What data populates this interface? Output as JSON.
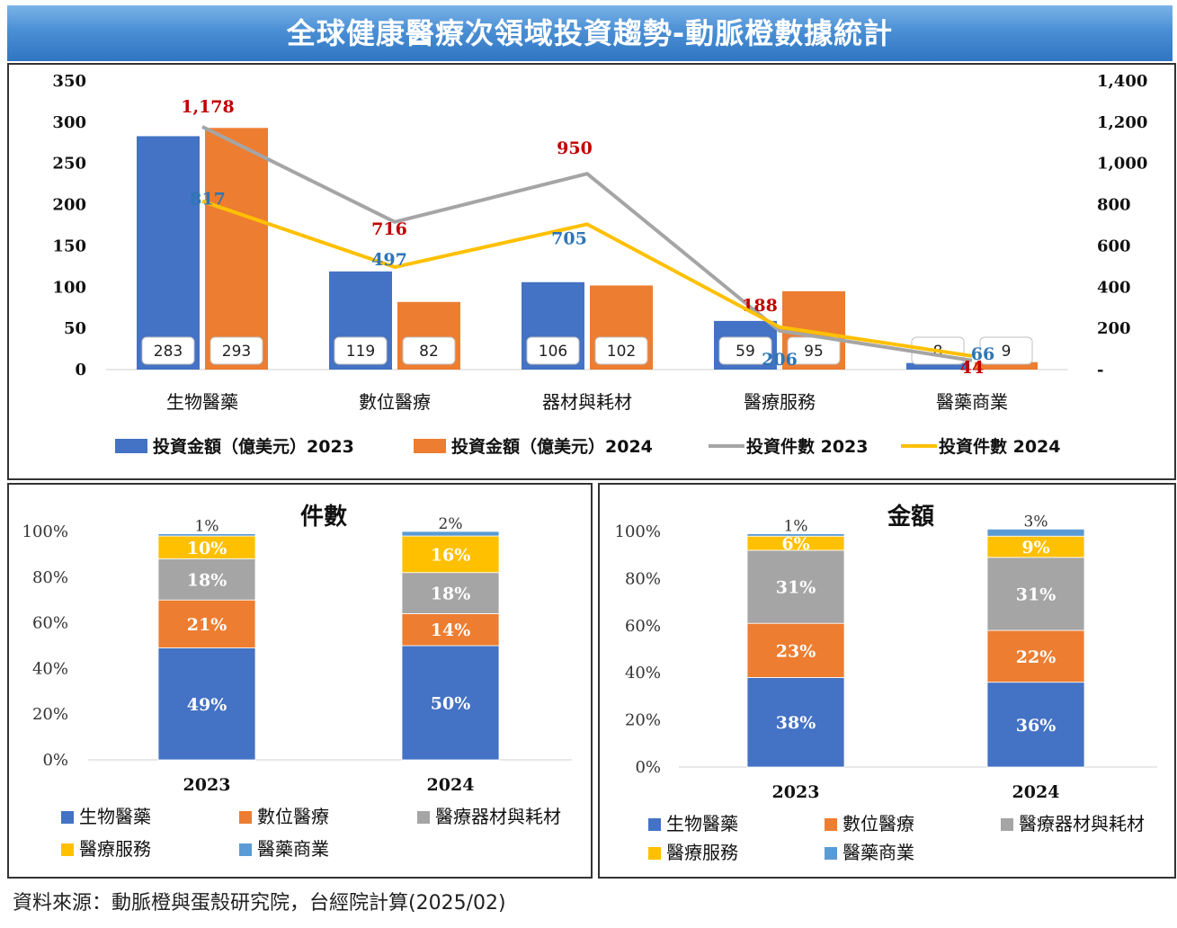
{
  "header": {
    "title": "全球健康醫療次領域投資趨勢-動脈橙數據統計"
  },
  "colors": {
    "blue": "#4472C4",
    "orange": "#ED7D31",
    "gray": "#A5A5A5",
    "gold": "#FFC000",
    "lightblue": "#5B9BD5",
    "line2023": "#A5A5A5",
    "line2024": "#FFC000",
    "label2023": "#C00000",
    "label2024": "#2E75B6"
  },
  "chart_data": [
    {
      "type": "bar",
      "categories": [
        "生物醫藥",
        "數位醫療",
        "器材與耗材",
        "醫療服務",
        "醫藥商業"
      ],
      "y_left_ticks": [
        "0",
        "50",
        "100",
        "150",
        "200",
        "250",
        "300",
        "350"
      ],
      "y_right_ticks": [
        "-",
        "200",
        "400",
        "600",
        "800",
        "1,000",
        "1,200",
        "1,400"
      ],
      "ylim_left": [
        0,
        350
      ],
      "ylim_right": [
        0,
        1400
      ],
      "series": [
        {
          "name": "投資金額（億美元）2023",
          "type": "bar",
          "axis": "left",
          "values": [
            283,
            119,
            106,
            59,
            8
          ],
          "labels": [
            "283",
            "119",
            "106",
            "59",
            "8"
          ]
        },
        {
          "name": "投資金額（億美元）2024",
          "type": "bar",
          "axis": "left",
          "values": [
            293,
            82,
            102,
            95,
            9
          ],
          "labels": [
            "293",
            "82",
            "102",
            "95",
            "9"
          ]
        },
        {
          "name": "投資件數 2023",
          "type": "line",
          "axis": "right",
          "values": [
            1178,
            716,
            950,
            188,
            44
          ],
          "labels": [
            "1,178",
            "716",
            "950",
            "188",
            "44"
          ]
        },
        {
          "name": "投資件數 2024",
          "type": "line",
          "axis": "right",
          "values": [
            817,
            497,
            705,
            206,
            66
          ],
          "labels": [
            "817",
            "497",
            "705",
            "206",
            "66"
          ]
        }
      ],
      "legend_position": "bottom"
    },
    {
      "type": "bar",
      "stacked": true,
      "title": "件數",
      "categories": [
        "2023",
        "2024"
      ],
      "y_ticks": [
        "0%",
        "20%",
        "40%",
        "60%",
        "80%",
        "100%"
      ],
      "ylim": [
        0,
        100
      ],
      "series": [
        {
          "name": "生物醫藥",
          "values": [
            49,
            50
          ],
          "labels": [
            "49%",
            "50%"
          ]
        },
        {
          "name": "數位醫療",
          "values": [
            21,
            14
          ],
          "labels": [
            "21%",
            "14%"
          ]
        },
        {
          "name": "醫療器材與耗材",
          "values": [
            18,
            18
          ],
          "labels": [
            "18%",
            "18%"
          ]
        },
        {
          "name": "醫療服務",
          "values": [
            10,
            16
          ],
          "labels": [
            "10%",
            "16%"
          ]
        },
        {
          "name": "醫藥商業",
          "values": [
            1,
            2
          ],
          "labels": [
            "1%",
            "2%"
          ]
        }
      ],
      "legend_position": "bottom"
    },
    {
      "type": "bar",
      "stacked": true,
      "title": "金額",
      "categories": [
        "2023",
        "2024"
      ],
      "y_ticks": [
        "0%",
        "20%",
        "40%",
        "60%",
        "80%",
        "100%"
      ],
      "ylim": [
        0,
        100
      ],
      "series": [
        {
          "name": "生物醫藥",
          "values": [
            38,
            36
          ],
          "labels": [
            "38%",
            "36%"
          ]
        },
        {
          "name": "數位醫療",
          "values": [
            23,
            22
          ],
          "labels": [
            "23%",
            "22%"
          ]
        },
        {
          "name": "醫療器材與耗材",
          "values": [
            31,
            31
          ],
          "labels": [
            "31%",
            "31%"
          ]
        },
        {
          "name": "醫療服務",
          "values": [
            6,
            9
          ],
          "labels": [
            "6%",
            "9%"
          ]
        },
        {
          "name": "醫藥商業",
          "values": [
            1,
            3
          ],
          "labels": [
            "1%",
            "3%"
          ]
        }
      ],
      "legend_position": "bottom"
    }
  ],
  "footer": {
    "source": "資料來源：動脈橙與蛋殼研究院，台經院計算(2025/02)"
  }
}
